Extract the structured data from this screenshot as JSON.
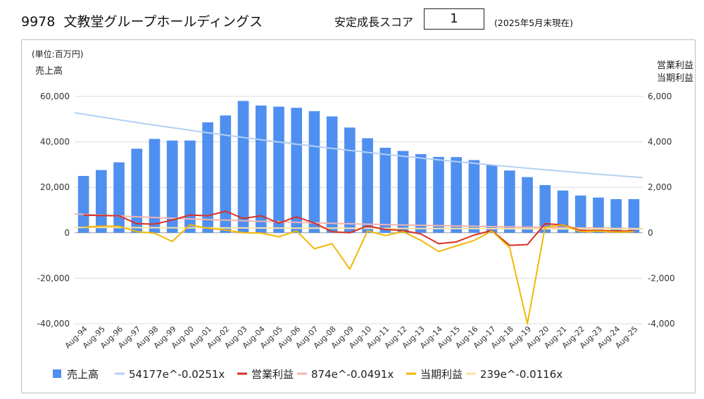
{
  "header": {
    "ticker": "9978",
    "company": "文教堂グループホールディングス",
    "score_label": "安定成長スコア",
    "score_value": "1",
    "as_of": "(2025年5月末現在)"
  },
  "chart_data": {
    "type": "bar",
    "unit_label": "(単位:百万円)",
    "left_axis_title": "売上高",
    "right_axis_title_1": "営業利益",
    "right_axis_title_2": "当期利益",
    "categories": [
      "Aug-94",
      "Aug-95",
      "Aug-96",
      "Aug-97",
      "Aug-98",
      "Aug-99",
      "Aug-00",
      "Aug-01",
      "Aug-02",
      "Aug-03",
      "Aug-04",
      "Aug-05",
      "Aug-06",
      "Aug-07",
      "Aug-08",
      "Aug-09",
      "Aug-10",
      "Aug-11",
      "Aug-12",
      "Aug-13",
      "Aug-14",
      "Aug-15",
      "Aug-16",
      "Aug-17",
      "Aug-18",
      "Aug-19",
      "Aug-20",
      "Aug-21",
      "Aug-22",
      "Aug-23",
      "Aug-24",
      "Aug-25"
    ],
    "ylim_left": [
      -40000,
      60000
    ],
    "yticks_left": [
      -40000,
      -20000,
      0,
      20000,
      40000,
      60000
    ],
    "ytick_labels_left": [
      "-40,000",
      "-20,000",
      "0",
      "20,000",
      "40,000",
      "60,000"
    ],
    "ylim_right": [
      -4000,
      6000
    ],
    "yticks_right": [
      -4000,
      -2000,
      0,
      2000,
      4000,
      6000
    ],
    "ytick_labels_right": [
      "-4,000",
      "-2,000",
      "0",
      "2,000",
      "4,000",
      "6,000"
    ],
    "grid": true,
    "legend_position": "bottom",
    "series": [
      {
        "name": "売上高",
        "type": "bar",
        "axis": "left",
        "color": "#4f8ff0",
        "values": [
          25000,
          27600,
          31000,
          37000,
          41300,
          40600,
          40600,
          48600,
          51600,
          58000,
          56000,
          55500,
          55000,
          53500,
          51200,
          46300,
          41600,
          37400,
          36000,
          34600,
          33400,
          33300,
          32000,
          29800,
          27400,
          24500,
          21000,
          18600,
          16400,
          15500,
          14800,
          14800
        ]
      },
      {
        "name": "54177e^-0.0251x",
        "type": "trend",
        "axis": "left",
        "color": "#b5d0f3",
        "trend": {
          "a": 54177,
          "b": -0.0251
        }
      },
      {
        "name": "営業利益",
        "type": "line",
        "axis": "right",
        "color": "#d93025",
        "values": [
          780,
          760,
          750,
          400,
          380,
          560,
          780,
          750,
          950,
          630,
          750,
          430,
          700,
          430,
          50,
          0,
          300,
          150,
          100,
          -50,
          -480,
          -400,
          -100,
          100,
          -550,
          -520,
          400,
          350,
          100,
          100,
          80,
          80
        ]
      },
      {
        "name": "874e^-0.0491x",
        "type": "trend",
        "axis": "right",
        "color": "#f3b4ae",
        "trend": {
          "a": 874,
          "b": -0.0491
        }
      },
      {
        "name": "当期利益",
        "type": "line",
        "axis": "right",
        "color": "#f2b707",
        "values": [
          250,
          290,
          290,
          50,
          -20,
          -380,
          350,
          200,
          120,
          0,
          -10,
          -180,
          80,
          -700,
          -480,
          -1600,
          80,
          -120,
          50,
          -330,
          -820,
          -580,
          -340,
          80,
          -650,
          -4000,
          250,
          350,
          50,
          70,
          30,
          50
        ]
      },
      {
        "name": "239e^-0.0116x",
        "type": "trend",
        "axis": "right",
        "color": "#fbe3a1",
        "trend": {
          "a": 239,
          "b": -0.0116
        }
      }
    ]
  }
}
